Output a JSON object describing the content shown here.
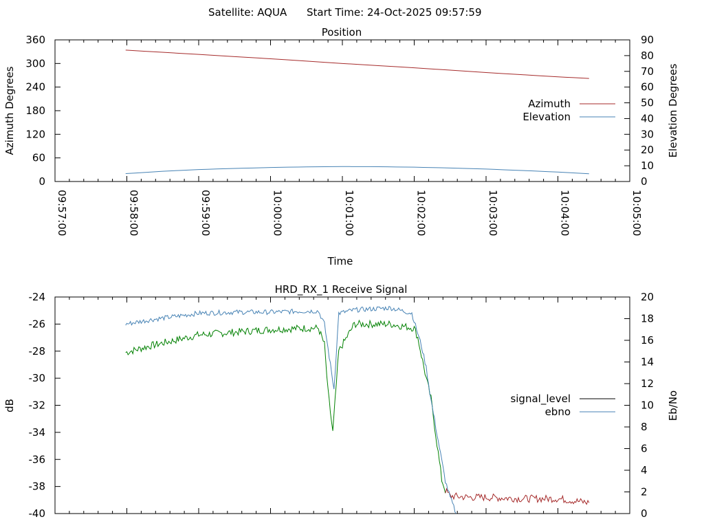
{
  "header": {
    "satellite": "Satellite: AQUA",
    "start_time": "Start Time: 24-Oct-2025 09:57:59"
  },
  "chart_data": [
    {
      "type": "line",
      "title": "Position",
      "xlabel": "Time",
      "ylabel": "Azimuth Degrees",
      "y2label": "Elevation Degrees",
      "xlim": [
        "09:57:00",
        "10:05:00"
      ],
      "x_ticks": [
        "09:57:00",
        "09:58:00",
        "09:59:00",
        "10:00:00",
        "10:01:00",
        "10:02:00",
        "10:03:00",
        "10:04:00",
        "10:05:00"
      ],
      "ylim": [
        0,
        360
      ],
      "y_ticks": [
        "0",
        "60",
        "120",
        "180",
        "240",
        "300",
        "360"
      ],
      "y2lim": [
        0,
        90
      ],
      "y2_ticks": [
        "0",
        "10",
        "20",
        "30",
        "40",
        "50",
        "60",
        "70",
        "80",
        "90"
      ],
      "legend_position": "right",
      "series": [
        {
          "name": "Azimuth",
          "axis": "left",
          "color": "#a52a2a",
          "x": [
            "09:57:59",
            "09:59:00",
            "10:00:00",
            "10:01:00",
            "10:02:00",
            "10:03:00",
            "10:04:00",
            "10:04:26"
          ],
          "y": [
            334,
            323,
            312,
            300,
            289,
            277,
            266,
            262
          ]
        },
        {
          "name": "Elevation",
          "axis": "right",
          "color": "#4682b4",
          "x": [
            "09:57:59",
            "09:58:30",
            "09:59:00",
            "09:59:30",
            "10:00:00",
            "10:00:30",
            "10:01:00",
            "10:01:30",
            "10:02:00",
            "10:02:30",
            "10:03:00",
            "10:03:30",
            "10:04:00",
            "10:04:26"
          ],
          "y": [
            5,
            6.5,
            7.6,
            8.3,
            8.9,
            9.3,
            9.5,
            9.4,
            9.1,
            8.6,
            7.9,
            7.0,
            6.0,
            4.9
          ]
        }
      ]
    },
    {
      "type": "line",
      "title": "HRD_RX_1 Receive Signal",
      "ylabel": "dB",
      "y2label": "Eb/No",
      "xlim": [
        "09:57:00",
        "10:05:00"
      ],
      "ylim": [
        -40,
        -24
      ],
      "y_ticks": [
        "-40",
        "-38",
        "-36",
        "-34",
        "-32",
        "-30",
        "-28",
        "-26",
        "-24"
      ],
      "y2lim": [
        0,
        20
      ],
      "y2_ticks": [
        "0",
        "2",
        "4",
        "6",
        "8",
        "10",
        "12",
        "14",
        "16",
        "18",
        "20"
      ],
      "legend_position": "right",
      "series": [
        {
          "name": "signal_level",
          "axis": "left",
          "color": "#008000",
          "tail_color": "#a52a2a",
          "x": [
            "09:57:59",
            "09:58:20",
            "09:58:40",
            "09:59:00",
            "09:59:30",
            "10:00:00",
            "10:00:30",
            "10:00:40",
            "10:00:45",
            "10:00:48",
            "10:00:52",
            "10:00:57",
            "10:01:10",
            "10:01:40",
            "10:02:00",
            "10:02:03",
            "10:02:06",
            "10:02:10",
            "10:02:14",
            "10:02:17",
            "10:02:20",
            "10:02:23",
            "10:02:26",
            "10:02:30",
            "10:02:45",
            "10:03:00",
            "10:03:30",
            "10:04:00",
            "10:04:26"
          ],
          "y": [
            -28.1,
            -27.6,
            -27.2,
            -26.8,
            -26.6,
            -26.4,
            -26.3,
            -26.3,
            -27.5,
            -31.0,
            -34.0,
            -28.0,
            -26.0,
            -26.0,
            -26.3,
            -27.0,
            -28.3,
            -30.0,
            -31.5,
            -33.5,
            -35.5,
            -37.5,
            -38.3,
            -38.7,
            -38.8,
            -38.8,
            -38.9,
            -38.9,
            -39.2
          ]
        },
        {
          "name": "ebno",
          "axis": "right",
          "color": "#4682b4",
          "x": [
            "09:57:59",
            "09:58:20",
            "09:58:40",
            "09:59:00",
            "09:59:30",
            "10:00:00",
            "10:00:30",
            "10:00:40",
            "10:00:45",
            "10:00:49",
            "10:00:53",
            "10:00:57",
            "10:01:10",
            "10:01:40",
            "10:01:58",
            "10:02:02",
            "10:02:06",
            "10:02:10",
            "10:02:14",
            "10:02:18",
            "10:02:22",
            "10:02:26",
            "10:02:30",
            "10:02:35"
          ],
          "y": [
            17.5,
            17.9,
            18.2,
            18.5,
            18.6,
            18.6,
            18.7,
            18.7,
            17.5,
            14.5,
            11.5,
            18.5,
            18.8,
            19.0,
            18.5,
            17.0,
            15.5,
            13.5,
            10.5,
            8.0,
            5.5,
            3.0,
            1.5,
            0.0
          ]
        }
      ]
    }
  ]
}
